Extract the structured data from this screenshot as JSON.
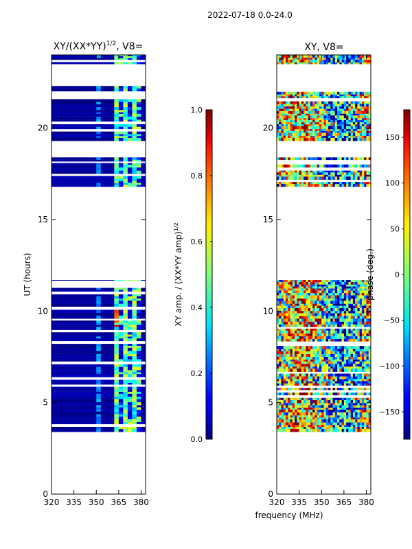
{
  "header": {
    "title": "2022-07-18 0.0-24.0"
  },
  "shared_xlabel": "frequency (MHz)",
  "chart_data": [
    {
      "type": "heatmap",
      "title": "XY/(XX*YY)",
      "title_exponent": "1/2",
      "title_suffix": ", V8=",
      "xlabel": "",
      "ylabel": "UT (hours)",
      "xlim": [
        320,
        383
      ],
      "ylim": [
        0,
        24
      ],
      "xticks": [
        320,
        335,
        350,
        365,
        380
      ],
      "yticks": [
        0,
        5,
        10,
        15,
        20
      ],
      "data_hour_bands": [
        [
          3.4,
          11.7
        ],
        [
          16.8,
          18.4
        ],
        [
          19.3,
          22.3
        ],
        [
          23.5,
          24.0
        ]
      ],
      "color_regions": [
        {
          "freq_start": 320,
          "freq_end": 351,
          "value": "low (0.0-0.1)"
        },
        {
          "freq_start": 351,
          "freq_end": 352,
          "value": "0.2-0.3"
        },
        {
          "freq_start": 363,
          "freq_end": 381,
          "value": "0.3-0.6"
        },
        {
          "freq_start": 363,
          "freq_end": 366,
          "hours": [
            8.8,
            10.0
          ],
          "value": "0.7-1.0"
        }
      ],
      "colorbar": {
        "colormap": "jet",
        "range": [
          0.0,
          1.0
        ],
        "ticks": [
          "0.0",
          "0.2",
          "0.4",
          "0.6",
          "0.8",
          "1.0"
        ],
        "label": "XY amp. / (XX*YY amp)",
        "label_exponent": "1/2"
      }
    },
    {
      "type": "heatmap",
      "title": "XY, V8=",
      "xlabel": "frequency (MHz)",
      "ylabel": "",
      "xlim": [
        320,
        383
      ],
      "ylim": [
        0,
        24
      ],
      "xticks": [
        320,
        335,
        350,
        365,
        380
      ],
      "yticks": [
        0,
        5,
        10,
        15,
        20
      ],
      "data_hour_bands": [
        [
          3.4,
          11.7
        ],
        [
          16.8,
          18.4
        ],
        [
          19.3,
          22.3
        ],
        [
          23.5,
          24.0
        ]
      ],
      "value_range": [
        -180,
        180
      ],
      "colorbar": {
        "colormap": "jet",
        "range": [
          -180,
          180
        ],
        "ticks": [
          "−150",
          "−100",
          "−50",
          "0",
          "50",
          "100",
          "150"
        ],
        "tick_values": [
          -150,
          -100,
          -50,
          0,
          50,
          100,
          150
        ],
        "label": "phase (deg.)"
      }
    }
  ],
  "colors": {
    "cmap_low": "#00007f",
    "cmap_high": "#7f0000",
    "axis": "#000000"
  }
}
